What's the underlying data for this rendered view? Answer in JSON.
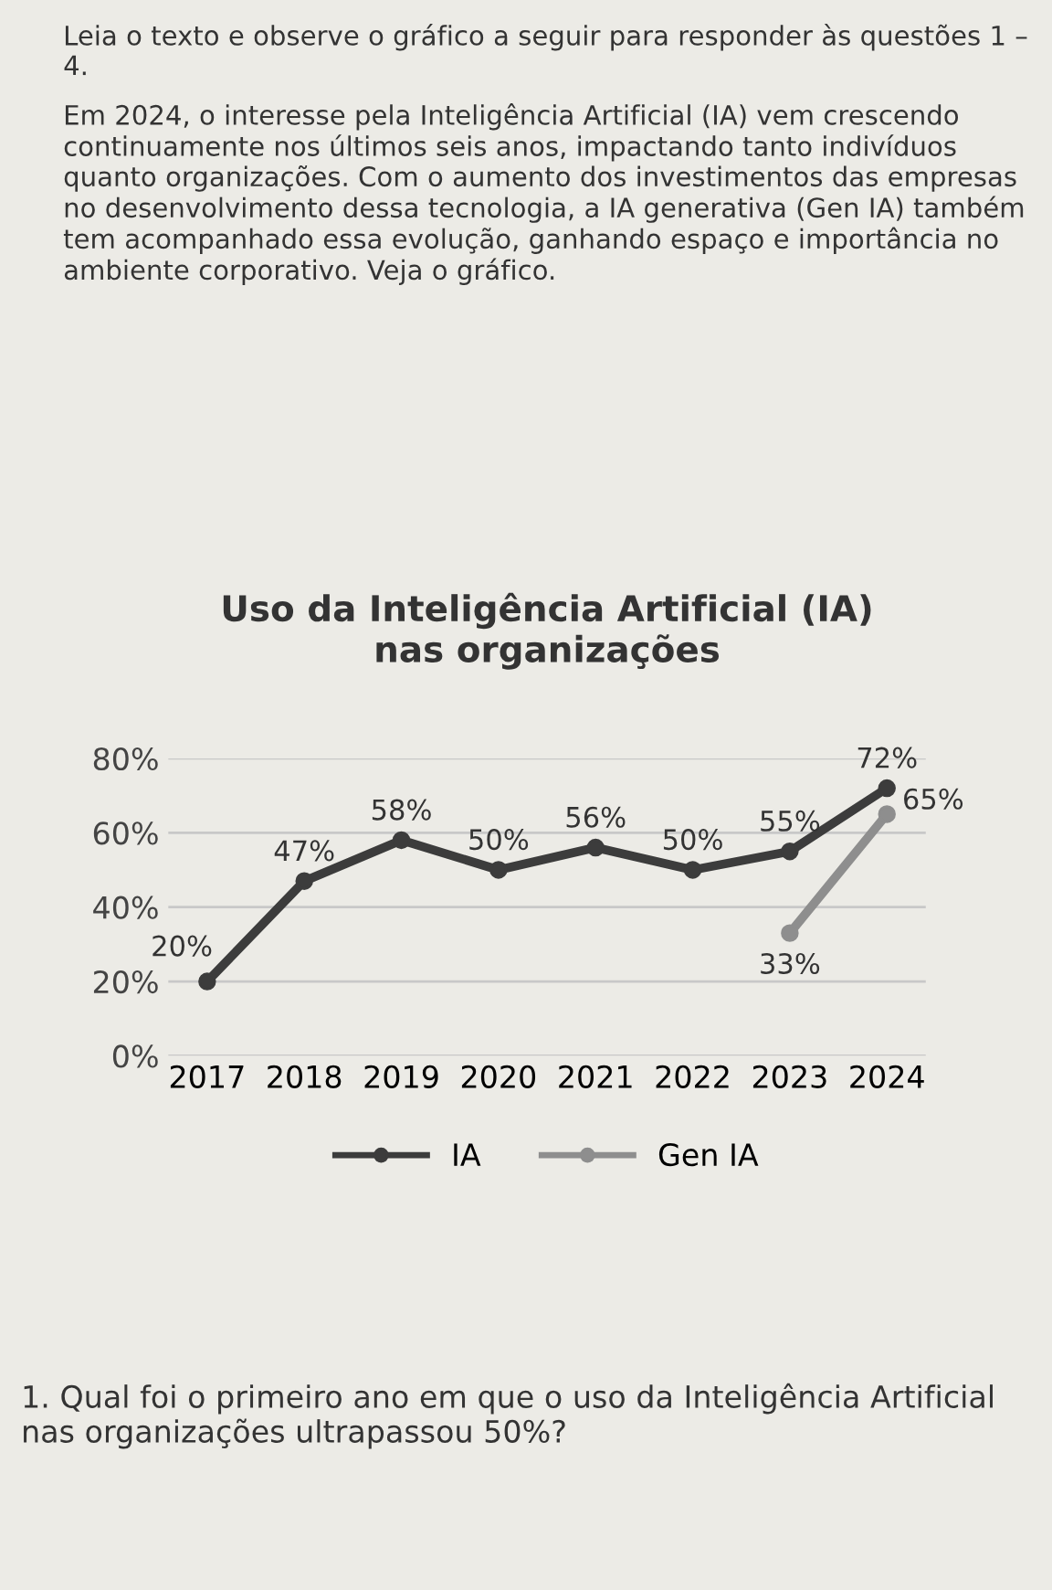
{
  "chart_data": {
    "type": "line",
    "title": "Uso da Inteligência Artificial (IA)\nnas organizações",
    "categories": [
      "2017",
      "2018",
      "2019",
      "2020",
      "2021",
      "2022",
      "2023",
      "2024"
    ],
    "series": [
      {
        "name": "IA",
        "color": "#3c3c3c",
        "values": [
          20,
          47,
          58,
          50,
          56,
          50,
          55,
          72
        ],
        "value_labels": [
          "20%",
          "47%",
          "58%",
          "50%",
          "56%",
          "50%",
          "55%",
          "72%"
        ]
      },
      {
        "name": "Gen IA",
        "color": "#8e8e8e",
        "values": [
          null,
          null,
          null,
          null,
          null,
          null,
          33,
          65
        ],
        "value_labels": [
          null,
          null,
          null,
          null,
          null,
          null,
          "33%",
          "65%"
        ]
      }
    ],
    "ylim": [
      0,
      80
    ],
    "yticks": [
      {
        "value": 0,
        "label": "0%"
      },
      {
        "value": 20,
        "label": "20%"
      },
      {
        "value": 40,
        "label": "40%"
      },
      {
        "value": 60,
        "label": "60%"
      },
      {
        "value": 80,
        "label": "80%"
      }
    ],
    "grid": "y",
    "legend": "bottom",
    "marker": "circle",
    "line_style": "solid",
    "annotations": [
      "Leia o texto e observe o gráfico a seguir para responder às questões 1 – 4.",
      "Em 2024, o interesse pela Inteligência Artificial (IA) vem crescendo continuamente nos últimos seis anos, impactando tanto indivíduos quanto organizações. Com o aumento dos investimentos das empresas no desenvolvimento dessa tecnologia, a IA generativa (Gen IA) também tem acompanhado essa evolução, ganhando espaço e importância no ambiente corporativo. Veja o gráfico.",
      "1. Qual foi o primeiro ano em que o uso da Inteligência Artificial nas organizações ultrapassou 50%?"
    ]
  }
}
